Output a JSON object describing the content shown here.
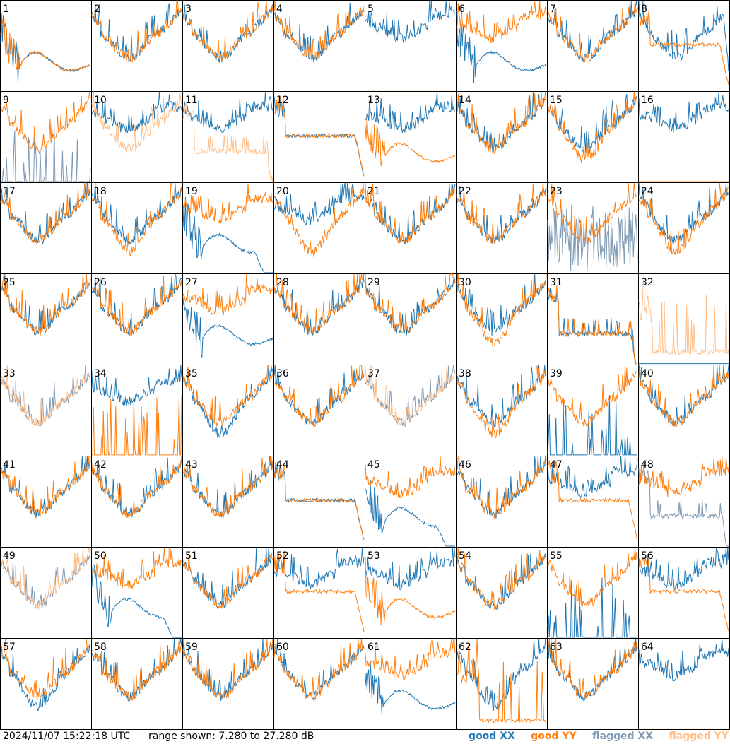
{
  "footer": {
    "timestamp": "2024/11/07 15:22:18 UTC",
    "range_text": "range shown: 7.280 to 27.280 dB"
  },
  "colors": {
    "good_xx": "#1f77b4",
    "good_yy": "#ff7f0e",
    "flagged_xx": "#7f9ab5",
    "flagged_yy": "#ffbf8a",
    "grid_line": "#000000"
  },
  "chart_data": {
    "type": "line",
    "layout": "8x8 small multiples",
    "ylim": [
      7.28,
      27.28
    ],
    "y_unit": "dB",
    "legend_placement": "bottom-right",
    "legend": [
      {
        "key": "good_xx",
        "label": "good XX"
      },
      {
        "key": "good_yy",
        "label": "good YY"
      },
      {
        "key": "flagged_xx",
        "label": "flagged XX"
      },
      {
        "key": "flagged_yy",
        "label": "flagged YY"
      }
    ],
    "panels": [
      {
        "id": "1",
        "xx": [
          "good",
          "bump"
        ],
        "yy": [
          "good",
          "bump"
        ]
      },
      {
        "id": "2",
        "xx": [
          "good",
          "normal"
        ],
        "yy": [
          "good",
          "normal"
        ]
      },
      {
        "id": "3",
        "xx": [
          "good",
          "normal"
        ],
        "yy": [
          "good",
          "normal"
        ]
      },
      {
        "id": "4",
        "xx": [
          "good",
          "normal"
        ],
        "yy": [
          "good",
          "normal"
        ]
      },
      {
        "id": "5",
        "xx": [
          "good",
          "high"
        ],
        "yy": [
          "good",
          "flat"
        ]
      },
      {
        "id": "6",
        "xx": [
          "good",
          "bump"
        ],
        "yy": [
          "good",
          "high"
        ]
      },
      {
        "id": "7",
        "xx": [
          "good",
          "normal"
        ],
        "yy": [
          "good",
          "normal"
        ]
      },
      {
        "id": "8",
        "xx": [
          "good",
          "normalroll"
        ],
        "yy": [
          "good",
          "plateau"
        ]
      },
      {
        "id": "9",
        "xx": [
          "flagged",
          "spikes"
        ],
        "yy": [
          "good",
          "normal"
        ]
      },
      {
        "id": "10",
        "xx": [
          "good",
          "high"
        ],
        "yy": [
          "flagged",
          "normal"
        ]
      },
      {
        "id": "11",
        "xx": [
          "good",
          "high"
        ],
        "yy": [
          "flagged",
          "lowroll"
        ]
      },
      {
        "id": "12",
        "xx": [
          "good",
          "plateau"
        ],
        "yy": [
          "good",
          "plateau"
        ]
      },
      {
        "id": "13",
        "xx": [
          "good",
          "high"
        ],
        "yy": [
          "good",
          "bump"
        ]
      },
      {
        "id": "14",
        "xx": [
          "good",
          "normal"
        ],
        "yy": [
          "good",
          "normal"
        ]
      },
      {
        "id": "15",
        "xx": [
          "good",
          "normal"
        ],
        "yy": [
          "good",
          "deep"
        ]
      },
      {
        "id": "16",
        "xx": [
          "good",
          "high"
        ],
        "yy": [
          "flagged",
          "flat"
        ]
      },
      {
        "id": "17",
        "xx": [
          "good",
          "normal"
        ],
        "yy": [
          "good",
          "normal"
        ]
      },
      {
        "id": "18",
        "xx": [
          "good",
          "normal"
        ],
        "yy": [
          "good",
          "deep"
        ]
      },
      {
        "id": "19",
        "xx": [
          "good",
          "bumproll"
        ],
        "yy": [
          "good",
          "high"
        ]
      },
      {
        "id": "20",
        "xx": [
          "good",
          "high"
        ],
        "yy": [
          "good",
          "deep"
        ]
      },
      {
        "id": "21",
        "xx": [
          "good",
          "normal"
        ],
        "yy": [
          "good",
          "normal"
        ]
      },
      {
        "id": "22",
        "xx": [
          "good",
          "normal"
        ],
        "yy": [
          "good",
          "normal"
        ]
      },
      {
        "id": "23",
        "xx": [
          "flagged",
          "noise"
        ],
        "yy": [
          "good",
          "normal"
        ]
      },
      {
        "id": "24",
        "xx": [
          "good",
          "normal"
        ],
        "yy": [
          "good",
          "deep"
        ]
      },
      {
        "id": "25",
        "xx": [
          "good",
          "normal"
        ],
        "yy": [
          "good",
          "normal"
        ]
      },
      {
        "id": "26",
        "xx": [
          "good",
          "normal"
        ],
        "yy": [
          "good",
          "normal"
        ]
      },
      {
        "id": "27",
        "xx": [
          "good",
          "bump"
        ],
        "yy": [
          "good",
          "high"
        ]
      },
      {
        "id": "28",
        "xx": [
          "good",
          "normal"
        ],
        "yy": [
          "good",
          "normal"
        ]
      },
      {
        "id": "29",
        "xx": [
          "good",
          "normal"
        ],
        "yy": [
          "good",
          "normal"
        ]
      },
      {
        "id": "30",
        "xx": [
          "good",
          "normal"
        ],
        "yy": [
          "good",
          "deep"
        ]
      },
      {
        "id": "31",
        "xx": [
          "good",
          "lowroll"
        ],
        "yy": [
          "good",
          "lowroll"
        ]
      },
      {
        "id": "32",
        "xx": [
          "good",
          "flat"
        ],
        "yy": [
          "flagged",
          "spiky"
        ]
      },
      {
        "id": "33",
        "xx": [
          "flagged",
          "normal"
        ],
        "yy": [
          "flagged",
          "normal"
        ]
      },
      {
        "id": "34",
        "xx": [
          "good",
          "high"
        ],
        "yy": [
          "good",
          "spikes"
        ]
      },
      {
        "id": "35",
        "xx": [
          "good",
          "deep"
        ],
        "yy": [
          "good",
          "normal"
        ]
      },
      {
        "id": "36",
        "xx": [
          "good",
          "normal"
        ],
        "yy": [
          "good",
          "normal"
        ]
      },
      {
        "id": "37",
        "xx": [
          "flagged",
          "normal"
        ],
        "yy": [
          "flagged",
          "normal"
        ]
      },
      {
        "id": "38",
        "xx": [
          "good",
          "normal"
        ],
        "yy": [
          "good",
          "deep"
        ]
      },
      {
        "id": "39",
        "xx": [
          "good",
          "spikes"
        ],
        "yy": [
          "good",
          "normal"
        ]
      },
      {
        "id": "40",
        "xx": [
          "good",
          "normal"
        ],
        "yy": [
          "good",
          "normal"
        ]
      },
      {
        "id": "41",
        "xx": [
          "good",
          "normal"
        ],
        "yy": [
          "good",
          "normal"
        ]
      },
      {
        "id": "42",
        "xx": [
          "good",
          "normal"
        ],
        "yy": [
          "good",
          "normal"
        ]
      },
      {
        "id": "43",
        "xx": [
          "good",
          "normal"
        ],
        "yy": [
          "good",
          "normal"
        ]
      },
      {
        "id": "44",
        "xx": [
          "good",
          "plateau"
        ],
        "yy": [
          "good",
          "plateau"
        ]
      },
      {
        "id": "45",
        "xx": [
          "good",
          "bumproll"
        ],
        "yy": [
          "good",
          "high"
        ]
      },
      {
        "id": "46",
        "xx": [
          "good",
          "normal"
        ],
        "yy": [
          "good",
          "normal"
        ]
      },
      {
        "id": "47",
        "xx": [
          "good",
          "high"
        ],
        "yy": [
          "good",
          "plateau"
        ]
      },
      {
        "id": "48",
        "xx": [
          "flagged",
          "lowroll"
        ],
        "yy": [
          "good",
          "high"
        ]
      },
      {
        "id": "49",
        "xx": [
          "flagged",
          "normal"
        ],
        "yy": [
          "flagged",
          "normal"
        ]
      },
      {
        "id": "50",
        "xx": [
          "good",
          "bumproll"
        ],
        "yy": [
          "good",
          "high"
        ]
      },
      {
        "id": "51",
        "xx": [
          "good",
          "normal"
        ],
        "yy": [
          "good",
          "normal"
        ]
      },
      {
        "id": "52",
        "xx": [
          "good",
          "high"
        ],
        "yy": [
          "good",
          "plateau"
        ]
      },
      {
        "id": "53",
        "xx": [
          "good",
          "high"
        ],
        "yy": [
          "good",
          "bump"
        ]
      },
      {
        "id": "54",
        "xx": [
          "good",
          "normal"
        ],
        "yy": [
          "good",
          "normal"
        ]
      },
      {
        "id": "55",
        "xx": [
          "good",
          "spikes"
        ],
        "yy": [
          "good",
          "normal"
        ]
      },
      {
        "id": "56",
        "xx": [
          "good",
          "high"
        ],
        "yy": [
          "good",
          "plateau"
        ]
      },
      {
        "id": "57",
        "xx": [
          "good",
          "deep"
        ],
        "yy": [
          "good",
          "normal"
        ]
      },
      {
        "id": "58",
        "xx": [
          "good",
          "normal"
        ],
        "yy": [
          "good",
          "normal"
        ]
      },
      {
        "id": "59",
        "xx": [
          "good",
          "normal"
        ],
        "yy": [
          "good",
          "normal"
        ]
      },
      {
        "id": "60",
        "xx": [
          "good",
          "normal"
        ],
        "yy": [
          "good",
          "normal"
        ]
      },
      {
        "id": "61",
        "xx": [
          "good",
          "bump"
        ],
        "yy": [
          "good",
          "high"
        ]
      },
      {
        "id": "62",
        "xx": [
          "good",
          "deep"
        ],
        "yy": [
          "good",
          "drop"
        ]
      },
      {
        "id": "63",
        "xx": [
          "good",
          "normal"
        ],
        "yy": [
          "good",
          "normal"
        ]
      },
      {
        "id": "64",
        "xx": [
          "good",
          "high"
        ],
        "yy": [
          "flagged",
          "flat"
        ]
      }
    ]
  }
}
